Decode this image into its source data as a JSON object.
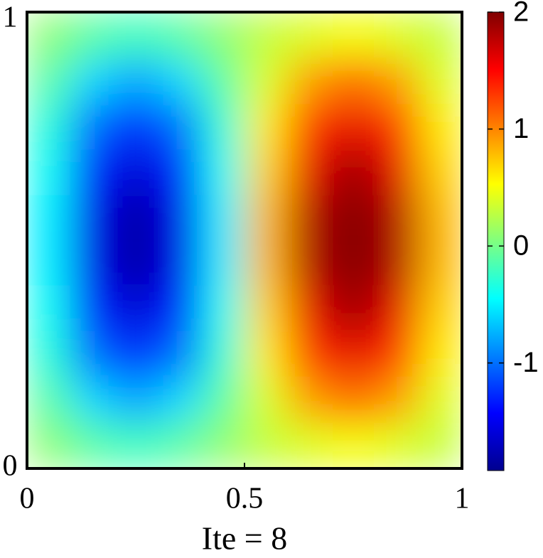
{
  "chart_data": {
    "type": "heatmap",
    "xlabel": "Ite = 8",
    "xlim": [
      0,
      1
    ],
    "ylim": [
      0,
      1
    ],
    "xticks": [
      0,
      0.5,
      1
    ],
    "yticks": [
      0,
      1
    ],
    "colormap": "jet",
    "z": [
      [
        0.1,
        -0.1,
        -0.2,
        -0.1,
        0.1,
        0.3,
        0.4,
        0.5,
        0.4,
        0.3
      ],
      [
        -0.1,
        -0.6,
        -0.8,
        -0.6,
        -0.1,
        0.4,
        0.9,
        1.1,
        0.9,
        0.4
      ],
      [
        -0.3,
        -1.0,
        -1.3,
        -1.0,
        -0.3,
        0.6,
        1.3,
        1.6,
        1.3,
        0.6
      ],
      [
        -0.4,
        -1.3,
        -1.6,
        -1.3,
        -0.4,
        0.7,
        1.6,
        1.9,
        1.6,
        0.7
      ],
      [
        -0.5,
        -1.5,
        -1.8,
        -1.5,
        -0.5,
        0.8,
        1.8,
        2.0,
        1.8,
        0.8
      ],
      [
        -0.5,
        -1.5,
        -1.8,
        -1.5,
        -0.5,
        0.8,
        1.8,
        2.0,
        1.8,
        0.8
      ],
      [
        -0.4,
        -1.3,
        -1.6,
        -1.3,
        -0.4,
        0.7,
        1.6,
        1.9,
        1.6,
        0.7
      ],
      [
        -0.3,
        -1.0,
        -1.3,
        -1.0,
        -0.3,
        0.6,
        1.3,
        1.6,
        1.3,
        0.6
      ],
      [
        -0.1,
        -0.6,
        -0.8,
        -0.6,
        -0.1,
        0.4,
        0.9,
        1.1,
        0.9,
        0.4
      ],
      [
        0.1,
        -0.1,
        -0.2,
        -0.1,
        0.1,
        0.3,
        0.4,
        0.5,
        0.4,
        0.3
      ]
    ],
    "colorbar": {
      "lim": [
        -1.92,
        2
      ],
      "ticks": [
        -1,
        0,
        1,
        2
      ]
    }
  }
}
